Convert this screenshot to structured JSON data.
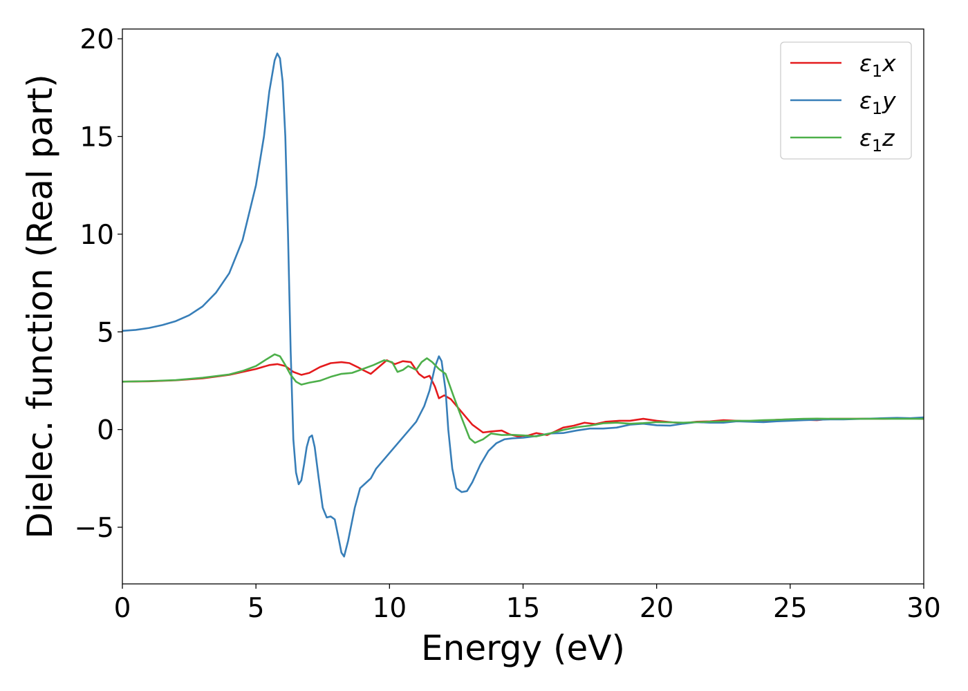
{
  "chart_data": {
    "type": "line",
    "title": "",
    "xlabel": "Energy (eV)",
    "ylabel": "Dielec. function (Real part)",
    "xlim": [
      0,
      30
    ],
    "ylim": [
      -7.9,
      20.5
    ],
    "xticks": [
      0,
      5,
      10,
      15,
      20,
      25,
      30
    ],
    "xtick_labels": [
      "0",
      "5",
      "10",
      "15",
      "20",
      "25",
      "30"
    ],
    "yticks": [
      -5,
      0,
      5,
      10,
      15,
      20
    ],
    "ytick_labels": [
      "−5",
      "0",
      "5",
      "10",
      "15",
      "20"
    ],
    "grid": false,
    "legend_position": "top-right",
    "series": [
      {
        "name": "ε₁x",
        "legend_main": "ε",
        "legend_sub": "1",
        "legend_tail": "x",
        "color": "#e41a1c",
        "points": [
          [
            0,
            2.45
          ],
          [
            1,
            2.47
          ],
          [
            2,
            2.52
          ],
          [
            3,
            2.62
          ],
          [
            4,
            2.8
          ],
          [
            4.5,
            2.95
          ],
          [
            5,
            3.1
          ],
          [
            5.5,
            3.3
          ],
          [
            5.8,
            3.35
          ],
          [
            6.1,
            3.25
          ],
          [
            6.4,
            2.95
          ],
          [
            6.7,
            2.8
          ],
          [
            7.0,
            2.9
          ],
          [
            7.4,
            3.2
          ],
          [
            7.8,
            3.4
          ],
          [
            8.2,
            3.45
          ],
          [
            8.5,
            3.4
          ],
          [
            8.8,
            3.2
          ],
          [
            9.0,
            3.05
          ],
          [
            9.3,
            2.85
          ],
          [
            9.6,
            3.2
          ],
          [
            9.9,
            3.55
          ],
          [
            10.2,
            3.35
          ],
          [
            10.5,
            3.5
          ],
          [
            10.8,
            3.45
          ],
          [
            11.1,
            2.85
          ],
          [
            11.3,
            2.65
          ],
          [
            11.5,
            2.75
          ],
          [
            11.7,
            2.2
          ],
          [
            11.85,
            1.6
          ],
          [
            12.05,
            1.75
          ],
          [
            12.3,
            1.55
          ],
          [
            12.7,
            0.9
          ],
          [
            13.1,
            0.25
          ],
          [
            13.5,
            -0.15
          ],
          [
            13.8,
            -0.1
          ],
          [
            14.2,
            -0.05
          ],
          [
            14.5,
            -0.25
          ],
          [
            14.8,
            -0.35
          ],
          [
            15.2,
            -0.3
          ],
          [
            15.5,
            -0.18
          ],
          [
            15.9,
            -0.28
          ],
          [
            16.2,
            -0.1
          ],
          [
            16.5,
            0.1
          ],
          [
            16.9,
            0.2
          ],
          [
            17.3,
            0.35
          ],
          [
            17.7,
            0.28
          ],
          [
            18.1,
            0.4
          ],
          [
            18.6,
            0.45
          ],
          [
            19.0,
            0.45
          ],
          [
            19.5,
            0.55
          ],
          [
            20.0,
            0.45
          ],
          [
            20.5,
            0.38
          ],
          [
            21.0,
            0.32
          ],
          [
            21.5,
            0.4
          ],
          [
            22.0,
            0.42
          ],
          [
            22.5,
            0.48
          ],
          [
            23.0,
            0.45
          ],
          [
            23.5,
            0.42
          ],
          [
            24.0,
            0.45
          ],
          [
            24.5,
            0.5
          ],
          [
            25.0,
            0.52
          ],
          [
            25.5,
            0.5
          ],
          [
            26.0,
            0.48
          ],
          [
            26.5,
            0.55
          ],
          [
            27.0,
            0.55
          ],
          [
            27.5,
            0.55
          ],
          [
            28.0,
            0.56
          ],
          [
            28.5,
            0.55
          ],
          [
            29.0,
            0.57
          ],
          [
            29.5,
            0.57
          ],
          [
            30,
            0.55
          ]
        ]
      },
      {
        "name": "ε₁y",
        "legend_main": "ε",
        "legend_sub": "1",
        "legend_tail": "y",
        "color": "#377eb8",
        "points": [
          [
            0,
            5.05
          ],
          [
            0.5,
            5.1
          ],
          [
            1,
            5.2
          ],
          [
            1.5,
            5.35
          ],
          [
            2,
            5.55
          ],
          [
            2.5,
            5.85
          ],
          [
            3,
            6.3
          ],
          [
            3.5,
            7.0
          ],
          [
            4,
            8.0
          ],
          [
            4.5,
            9.7
          ],
          [
            5.0,
            12.5
          ],
          [
            5.3,
            15.0
          ],
          [
            5.5,
            17.3
          ],
          [
            5.7,
            18.9
          ],
          [
            5.8,
            19.25
          ],
          [
            5.9,
            19.0
          ],
          [
            6.0,
            17.8
          ],
          [
            6.1,
            15.0
          ],
          [
            6.2,
            10.0
          ],
          [
            6.3,
            4.0
          ],
          [
            6.4,
            -0.5
          ],
          [
            6.5,
            -2.2
          ],
          [
            6.6,
            -2.8
          ],
          [
            6.7,
            -2.6
          ],
          [
            6.8,
            -1.8
          ],
          [
            6.9,
            -0.9
          ],
          [
            7.0,
            -0.4
          ],
          [
            7.1,
            -0.3
          ],
          [
            7.2,
            -0.9
          ],
          [
            7.35,
            -2.5
          ],
          [
            7.5,
            -4.0
          ],
          [
            7.65,
            -4.5
          ],
          [
            7.8,
            -4.45
          ],
          [
            7.95,
            -4.6
          ],
          [
            8.1,
            -5.6
          ],
          [
            8.2,
            -6.3
          ],
          [
            8.3,
            -6.5
          ],
          [
            8.45,
            -5.7
          ],
          [
            8.7,
            -4.0
          ],
          [
            8.9,
            -3.0
          ],
          [
            9.1,
            -2.75
          ],
          [
            9.3,
            -2.5
          ],
          [
            9.5,
            -2.0
          ],
          [
            10.0,
            -1.2
          ],
          [
            10.5,
            -0.4
          ],
          [
            11.0,
            0.4
          ],
          [
            11.3,
            1.2
          ],
          [
            11.5,
            2.0
          ],
          [
            11.7,
            3.2
          ],
          [
            11.85,
            3.75
          ],
          [
            11.95,
            3.5
          ],
          [
            12.1,
            2.0
          ],
          [
            12.2,
            0.0
          ],
          [
            12.35,
            -2.0
          ],
          [
            12.5,
            -3.0
          ],
          [
            12.7,
            -3.2
          ],
          [
            12.9,
            -3.15
          ],
          [
            13.1,
            -2.7
          ],
          [
            13.4,
            -1.8
          ],
          [
            13.7,
            -1.1
          ],
          [
            14.0,
            -0.7
          ],
          [
            14.3,
            -0.5
          ],
          [
            14.6,
            -0.45
          ],
          [
            15.0,
            -0.42
          ],
          [
            15.5,
            -0.33
          ],
          [
            16.0,
            -0.2
          ],
          [
            16.5,
            -0.18
          ],
          [
            17.0,
            -0.05
          ],
          [
            17.5,
            0.05
          ],
          [
            18.0,
            0.05
          ],
          [
            18.5,
            0.1
          ],
          [
            19.0,
            0.25
          ],
          [
            19.5,
            0.3
          ],
          [
            20.0,
            0.22
          ],
          [
            20.5,
            0.2
          ],
          [
            21.0,
            0.3
          ],
          [
            21.5,
            0.38
          ],
          [
            22.0,
            0.35
          ],
          [
            22.5,
            0.35
          ],
          [
            23.0,
            0.42
          ],
          [
            23.5,
            0.4
          ],
          [
            24.0,
            0.38
          ],
          [
            24.5,
            0.42
          ],
          [
            25.0,
            0.45
          ],
          [
            25.5,
            0.48
          ],
          [
            26.0,
            0.5
          ],
          [
            26.5,
            0.52
          ],
          [
            27.0,
            0.52
          ],
          [
            27.5,
            0.54
          ],
          [
            28.0,
            0.56
          ],
          [
            28.5,
            0.58
          ],
          [
            29.0,
            0.6
          ],
          [
            29.5,
            0.58
          ],
          [
            30,
            0.62
          ]
        ]
      },
      {
        "name": "ε₁z",
        "legend_main": "ε",
        "legend_sub": "1",
        "legend_tail": "z",
        "color": "#4daf4a",
        "points": [
          [
            0,
            2.45
          ],
          [
            1,
            2.48
          ],
          [
            2,
            2.53
          ],
          [
            3,
            2.65
          ],
          [
            4,
            2.82
          ],
          [
            4.5,
            3.0
          ],
          [
            5,
            3.25
          ],
          [
            5.4,
            3.6
          ],
          [
            5.7,
            3.85
          ],
          [
            5.9,
            3.75
          ],
          [
            6.1,
            3.3
          ],
          [
            6.3,
            2.8
          ],
          [
            6.5,
            2.45
          ],
          [
            6.7,
            2.3
          ],
          [
            7.0,
            2.4
          ],
          [
            7.4,
            2.5
          ],
          [
            7.8,
            2.7
          ],
          [
            8.2,
            2.85
          ],
          [
            8.6,
            2.9
          ],
          [
            9.0,
            3.1
          ],
          [
            9.4,
            3.3
          ],
          [
            9.8,
            3.55
          ],
          [
            10.1,
            3.45
          ],
          [
            10.3,
            2.95
          ],
          [
            10.5,
            3.05
          ],
          [
            10.7,
            3.25
          ],
          [
            11.0,
            3.05
          ],
          [
            11.2,
            3.45
          ],
          [
            11.4,
            3.65
          ],
          [
            11.6,
            3.45
          ],
          [
            11.85,
            3.1
          ],
          [
            12.1,
            2.85
          ],
          [
            12.4,
            1.7
          ],
          [
            12.7,
            0.6
          ],
          [
            13.0,
            -0.45
          ],
          [
            13.2,
            -0.68
          ],
          [
            13.5,
            -0.5
          ],
          [
            13.8,
            -0.2
          ],
          [
            14.2,
            -0.28
          ],
          [
            14.6,
            -0.27
          ],
          [
            15.0,
            -0.3
          ],
          [
            15.5,
            -0.35
          ],
          [
            16.0,
            -0.2
          ],
          [
            16.5,
            -0.02
          ],
          [
            17.0,
            0.12
          ],
          [
            17.5,
            0.2
          ],
          [
            18.0,
            0.32
          ],
          [
            18.5,
            0.35
          ],
          [
            19.0,
            0.3
          ],
          [
            19.5,
            0.33
          ],
          [
            20.0,
            0.38
          ],
          [
            20.5,
            0.37
          ],
          [
            21.0,
            0.35
          ],
          [
            21.5,
            0.38
          ],
          [
            22.0,
            0.4
          ],
          [
            22.5,
            0.42
          ],
          [
            23.0,
            0.45
          ],
          [
            23.5,
            0.45
          ],
          [
            24.0,
            0.48
          ],
          [
            24.5,
            0.5
          ],
          [
            25.0,
            0.53
          ],
          [
            25.5,
            0.55
          ],
          [
            26.0,
            0.56
          ],
          [
            26.5,
            0.55
          ],
          [
            27.0,
            0.55
          ],
          [
            27.5,
            0.55
          ],
          [
            28.0,
            0.55
          ],
          [
            28.5,
            0.55
          ],
          [
            29.0,
            0.55
          ],
          [
            29.5,
            0.55
          ],
          [
            30,
            0.55
          ]
        ]
      }
    ]
  }
}
